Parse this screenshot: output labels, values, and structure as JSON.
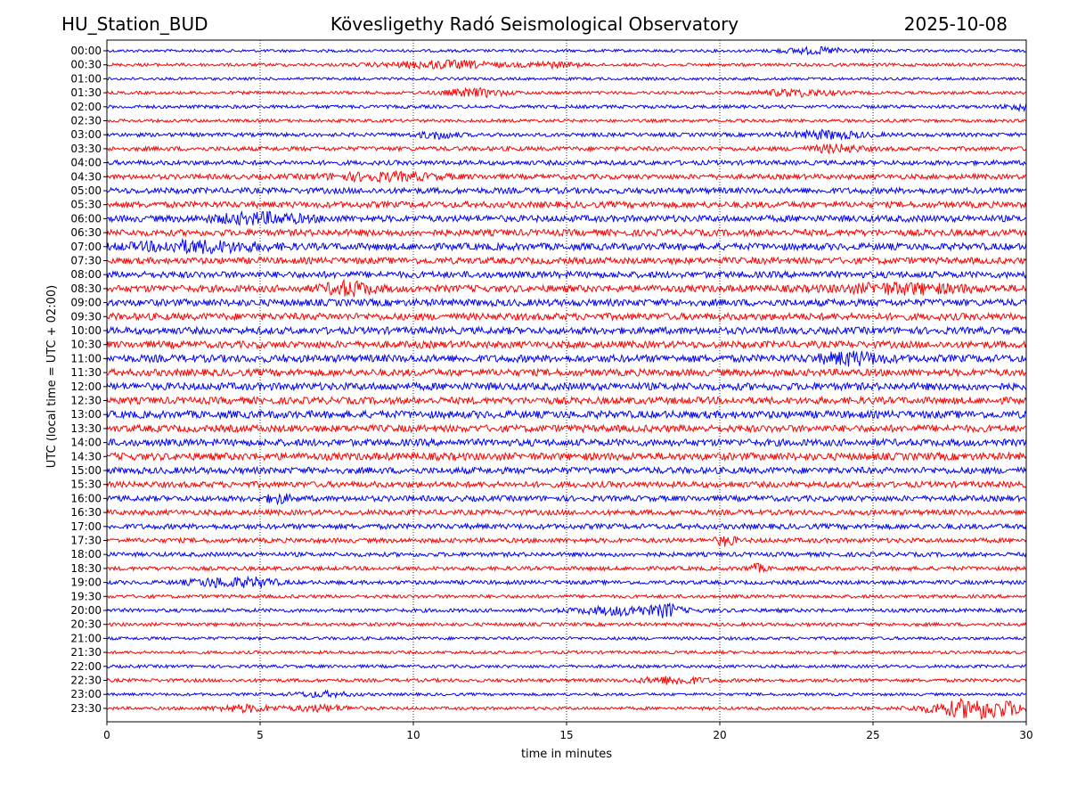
{
  "header": {
    "station": "HU_Station_BUD",
    "observatory": "Kövesligethy Radó Seismological Observatory",
    "date": "2025-10-08"
  },
  "chart_data": {
    "type": "line",
    "subtype": "helicorder",
    "xlabel": "time in minutes",
    "ylabel": "UTC (local time = UTC + 02:00)",
    "xlim": [
      0,
      30
    ],
    "xticks": [
      0,
      5,
      10,
      15,
      20,
      25,
      30
    ],
    "grid_x": true,
    "colors": {
      "even": "#0000ff",
      "odd": "#ff0000"
    },
    "rows": [
      {
        "label": "00:00",
        "amp": 0.18,
        "events": [
          {
            "t": 23.2,
            "a": 0.35,
            "w": 1.2
          }
        ]
      },
      {
        "label": "00:30",
        "amp": 0.2,
        "events": [
          {
            "t": 11.0,
            "a": 0.45,
            "w": 1.8
          },
          {
            "t": 14.5,
            "a": 0.3,
            "w": 0.8
          }
        ]
      },
      {
        "label": "01:00",
        "amp": 0.18,
        "events": []
      },
      {
        "label": "01:30",
        "amp": 0.2,
        "events": [
          {
            "t": 12.0,
            "a": 0.45,
            "w": 1.0
          },
          {
            "t": 22.5,
            "a": 0.4,
            "w": 1.2
          }
        ]
      },
      {
        "label": "02:00",
        "amp": 0.22,
        "events": [
          {
            "t": 29.8,
            "a": 0.35,
            "w": 0.5
          }
        ]
      },
      {
        "label": "02:30",
        "amp": 0.2,
        "events": []
      },
      {
        "label": "03:00",
        "amp": 0.25,
        "events": [
          {
            "t": 10.8,
            "a": 0.4,
            "w": 0.6
          },
          {
            "t": 23.5,
            "a": 0.45,
            "w": 1.2
          }
        ]
      },
      {
        "label": "03:30",
        "amp": 0.28,
        "events": [
          {
            "t": 23.8,
            "a": 0.4,
            "w": 0.8
          }
        ]
      },
      {
        "label": "04:00",
        "amp": 0.3,
        "events": []
      },
      {
        "label": "04:30",
        "amp": 0.32,
        "events": [
          {
            "t": 9.0,
            "a": 0.4,
            "w": 2.0
          }
        ]
      },
      {
        "label": "05:00",
        "amp": 0.38,
        "events": []
      },
      {
        "label": "05:30",
        "amp": 0.4,
        "events": []
      },
      {
        "label": "06:00",
        "amp": 0.42,
        "events": [
          {
            "t": 5.0,
            "a": 0.55,
            "w": 1.5
          }
        ]
      },
      {
        "label": "06:30",
        "amp": 0.42,
        "events": []
      },
      {
        "label": "07:00",
        "amp": 0.45,
        "events": [
          {
            "t": 3.0,
            "a": 0.55,
            "w": 2.0
          }
        ]
      },
      {
        "label": "07:30",
        "amp": 0.42,
        "events": []
      },
      {
        "label": "08:00",
        "amp": 0.42,
        "events": []
      },
      {
        "label": "08:30",
        "amp": 0.45,
        "events": [
          {
            "t": 7.9,
            "a": 0.75,
            "w": 0.8
          },
          {
            "t": 26.0,
            "a": 0.5,
            "w": 2.0
          }
        ]
      },
      {
        "label": "09:00",
        "amp": 0.45,
        "events": []
      },
      {
        "label": "09:30",
        "amp": 0.45,
        "events": []
      },
      {
        "label": "10:00",
        "amp": 0.45,
        "events": []
      },
      {
        "label": "10:30",
        "amp": 0.45,
        "events": []
      },
      {
        "label": "11:00",
        "amp": 0.48,
        "events": [
          {
            "t": 24.3,
            "a": 0.65,
            "w": 1.0
          }
        ]
      },
      {
        "label": "11:30",
        "amp": 0.45,
        "events": []
      },
      {
        "label": "12:00",
        "amp": 0.48,
        "events": []
      },
      {
        "label": "12:30",
        "amp": 0.45,
        "events": []
      },
      {
        "label": "13:00",
        "amp": 0.48,
        "events": []
      },
      {
        "label": "13:30",
        "amp": 0.45,
        "events": []
      },
      {
        "label": "14:00",
        "amp": 0.45,
        "events": []
      },
      {
        "label": "14:30",
        "amp": 0.48,
        "events": []
      },
      {
        "label": "15:00",
        "amp": 0.42,
        "events": []
      },
      {
        "label": "15:30",
        "amp": 0.38,
        "events": []
      },
      {
        "label": "16:00",
        "amp": 0.36,
        "events": [
          {
            "t": 5.6,
            "a": 0.45,
            "w": 0.4
          }
        ]
      },
      {
        "label": "16:30",
        "amp": 0.34,
        "events": []
      },
      {
        "label": "17:00",
        "amp": 0.34,
        "events": []
      },
      {
        "label": "17:30",
        "amp": 0.3,
        "events": [
          {
            "t": 20.2,
            "a": 0.6,
            "w": 0.3
          }
        ]
      },
      {
        "label": "18:00",
        "amp": 0.28,
        "events": []
      },
      {
        "label": "18:30",
        "amp": 0.26,
        "events": [
          {
            "t": 21.2,
            "a": 0.45,
            "w": 0.3
          }
        ]
      },
      {
        "label": "19:00",
        "amp": 0.26,
        "events": [
          {
            "t": 3.7,
            "a": 0.5,
            "w": 1.0
          },
          {
            "t": 5.0,
            "a": 0.4,
            "w": 0.6
          }
        ]
      },
      {
        "label": "19:30",
        "amp": 0.22,
        "events": []
      },
      {
        "label": "20:00",
        "amp": 0.24,
        "events": [
          {
            "t": 17.0,
            "a": 0.5,
            "w": 1.6
          },
          {
            "t": 18.3,
            "a": 0.65,
            "w": 0.3
          }
        ]
      },
      {
        "label": "20:30",
        "amp": 0.22,
        "events": []
      },
      {
        "label": "21:00",
        "amp": 0.2,
        "events": []
      },
      {
        "label": "21:30",
        "amp": 0.2,
        "events": []
      },
      {
        "label": "22:00",
        "amp": 0.2,
        "events": []
      },
      {
        "label": "22:30",
        "amp": 0.22,
        "events": [
          {
            "t": 18.5,
            "a": 0.45,
            "w": 1.0
          }
        ]
      },
      {
        "label": "23:00",
        "amp": 0.18,
        "events": [
          {
            "t": 7.0,
            "a": 0.3,
            "w": 1.0
          }
        ]
      },
      {
        "label": "23:30",
        "amp": 0.2,
        "events": [
          {
            "t": 4.5,
            "a": 0.4,
            "w": 1.0
          },
          {
            "t": 7.0,
            "a": 0.35,
            "w": 1.0
          },
          {
            "t": 28.5,
            "a": 1.25,
            "w": 1.6
          }
        ]
      }
    ]
  }
}
